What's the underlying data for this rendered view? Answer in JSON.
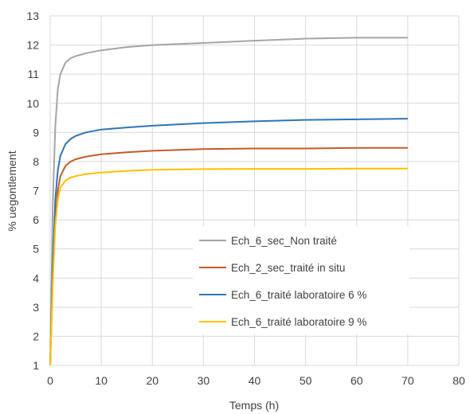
{
  "chart_data": {
    "type": "line",
    "xlabel": "Temps (h)",
    "ylabel": "% uegontlement",
    "xlim": [
      0,
      80
    ],
    "ylim": [
      1,
      13
    ],
    "xticks": [
      0,
      10,
      20,
      30,
      40,
      50,
      60,
      70,
      80
    ],
    "yticks": [
      1,
      2,
      3,
      4,
      5,
      6,
      7,
      8,
      9,
      10,
      11,
      12,
      13
    ],
    "grid": true,
    "legend_position": "inside-lower-right",
    "series": [
      {
        "name": "Ech_6_sec_Non traité",
        "color": "#a5a5a5",
        "x": [
          0,
          0.5,
          1,
          1.5,
          2,
          3,
          4,
          5,
          7,
          10,
          15,
          20,
          30,
          40,
          50,
          60,
          70
        ],
        "y": [
          1.0,
          6.5,
          9.2,
          10.5,
          11.0,
          11.4,
          11.55,
          11.62,
          11.72,
          11.82,
          11.93,
          12.0,
          12.07,
          12.15,
          12.22,
          12.25,
          12.25
        ]
      },
      {
        "name": "Ech_2_sec_traité in situ",
        "color": "#c55a2a",
        "x": [
          0,
          0.5,
          1,
          1.5,
          2,
          3,
          4,
          5,
          7,
          10,
          15,
          20,
          30,
          40,
          50,
          60,
          70
        ],
        "y": [
          1.0,
          4.0,
          6.0,
          7.0,
          7.5,
          7.85,
          8.0,
          8.08,
          8.17,
          8.25,
          8.32,
          8.37,
          8.43,
          8.45,
          8.45,
          8.47,
          8.47
        ]
      },
      {
        "name": "Ech_6_traité laboratoire 6 %",
        "color": "#2e75b6",
        "x": [
          0,
          0.5,
          1,
          1.5,
          2,
          3,
          4,
          5,
          7,
          10,
          15,
          20,
          30,
          40,
          50,
          60,
          70
        ],
        "y": [
          1.0,
          4.3,
          6.7,
          7.7,
          8.2,
          8.6,
          8.78,
          8.88,
          9.0,
          9.1,
          9.17,
          9.23,
          9.32,
          9.38,
          9.43,
          9.45,
          9.47
        ]
      },
      {
        "name": "Ech_6_traité laboratoire 9 %",
        "color": "#ffc000",
        "x": [
          0,
          0.5,
          1,
          1.5,
          2,
          3,
          4,
          5,
          7,
          10,
          15,
          20,
          30,
          40,
          50,
          60,
          70
        ],
        "y": [
          1.0,
          3.8,
          5.8,
          6.7,
          7.1,
          7.35,
          7.45,
          7.5,
          7.57,
          7.62,
          7.68,
          7.72,
          7.74,
          7.75,
          7.75,
          7.76,
          7.76
        ]
      }
    ]
  }
}
